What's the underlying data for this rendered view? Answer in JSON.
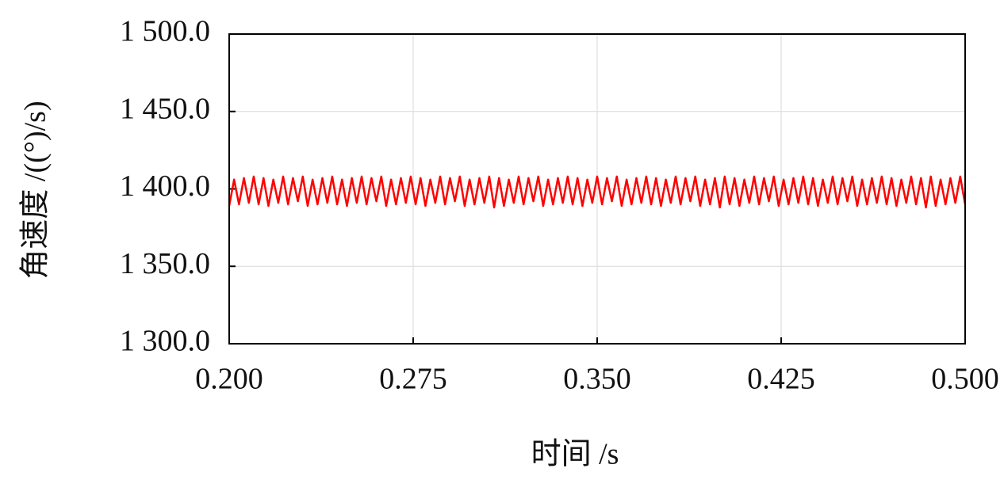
{
  "chart_data": {
    "type": "line",
    "y_label": "角速度 /((°)/s)",
    "x_label": "时间 /s",
    "xlim": [
      0.2,
      0.5
    ],
    "ylim": [
      1300,
      1500
    ],
    "xticks": [
      {
        "value": 0.2,
        "label": "0.200"
      },
      {
        "value": 0.275,
        "label": "0.275"
      },
      {
        "value": 0.35,
        "label": "0.350"
      },
      {
        "value": 0.425,
        "label": "0.425"
      },
      {
        "value": 0.5,
        "label": "0.500"
      }
    ],
    "yticks": [
      {
        "value": 1300,
        "label": "1 300.0"
      },
      {
        "value": 1350,
        "label": "1 350.0"
      },
      {
        "value": 1400,
        "label": "1 400.0"
      },
      {
        "value": 1450,
        "label": "1 450.0"
      },
      {
        "value": 1500,
        "label": "1 500.0"
      }
    ],
    "grid": true,
    "x": [
      0.2,
      0.202,
      0.204,
      0.206,
      0.208,
      0.21,
      0.212,
      0.214,
      0.216,
      0.218,
      0.22,
      0.222,
      0.224,
      0.226,
      0.228,
      0.23,
      0.232,
      0.234,
      0.236,
      0.238,
      0.24,
      0.242,
      0.244,
      0.246,
      0.248,
      0.25,
      0.252,
      0.254,
      0.256,
      0.258,
      0.26,
      0.262,
      0.264,
      0.266,
      0.268,
      0.27,
      0.272,
      0.274,
      0.276,
      0.278,
      0.28,
      0.282,
      0.284,
      0.286,
      0.288,
      0.29,
      0.292,
      0.294,
      0.296,
      0.298,
      0.3,
      0.302,
      0.304,
      0.306,
      0.308,
      0.31,
      0.312,
      0.314,
      0.316,
      0.318,
      0.32,
      0.322,
      0.324,
      0.326,
      0.328,
      0.33,
      0.332,
      0.334,
      0.336,
      0.338,
      0.34,
      0.342,
      0.344,
      0.346,
      0.348,
      0.35,
      0.352,
      0.354,
      0.356,
      0.358,
      0.36,
      0.362,
      0.364,
      0.366,
      0.368,
      0.37,
      0.372,
      0.374,
      0.376,
      0.378,
      0.38,
      0.382,
      0.384,
      0.386,
      0.388,
      0.39,
      0.392,
      0.394,
      0.396,
      0.398,
      0.4,
      0.402,
      0.404,
      0.406,
      0.408,
      0.41,
      0.412,
      0.414,
      0.416,
      0.418,
      0.42,
      0.422,
      0.424,
      0.426,
      0.428,
      0.43,
      0.432,
      0.434,
      0.436,
      0.438,
      0.44,
      0.442,
      0.444,
      0.446,
      0.448,
      0.45,
      0.452,
      0.454,
      0.456,
      0.458,
      0.46,
      0.462,
      0.464,
      0.466,
      0.468,
      0.47,
      0.472,
      0.474,
      0.476,
      0.478,
      0.48,
      0.482,
      0.484,
      0.486,
      0.488,
      0.49,
      0.492,
      0.494,
      0.496,
      0.498,
      0.5
    ],
    "series": [
      {
        "name": "角速度",
        "color": "#ff0000",
        "values": [
          1389,
          1406,
          1390,
          1407,
          1391,
          1408,
          1390,
          1407,
          1389,
          1406,
          1391,
          1408,
          1390,
          1407,
          1392,
          1408,
          1389,
          1406,
          1390,
          1407,
          1391,
          1408,
          1390,
          1406,
          1389,
          1407,
          1391,
          1408,
          1390,
          1407,
          1392,
          1408,
          1389,
          1406,
          1390,
          1407,
          1391,
          1408,
          1390,
          1407,
          1389,
          1406,
          1391,
          1408,
          1390,
          1407,
          1392,
          1408,
          1389,
          1406,
          1390,
          1407,
          1391,
          1408,
          1388,
          1407,
          1389,
          1406,
          1391,
          1408,
          1390,
          1407,
          1392,
          1408,
          1389,
          1406,
          1390,
          1407,
          1391,
          1408,
          1390,
          1407,
          1389,
          1406,
          1391,
          1408,
          1390,
          1407,
          1392,
          1408,
          1389,
          1406,
          1390,
          1407,
          1391,
          1408,
          1390,
          1407,
          1389,
          1406,
          1391,
          1408,
          1390,
          1407,
          1392,
          1408,
          1389,
          1406,
          1390,
          1407,
          1388,
          1408,
          1390,
          1407,
          1389,
          1406,
          1391,
          1408,
          1390,
          1407,
          1392,
          1408,
          1389,
          1406,
          1390,
          1407,
          1391,
          1408,
          1390,
          1407,
          1389,
          1406,
          1391,
          1408,
          1390,
          1407,
          1392,
          1408,
          1389,
          1406,
          1390,
          1407,
          1391,
          1408,
          1390,
          1407,
          1389,
          1406,
          1391,
          1408,
          1390,
          1407,
          1388,
          1408,
          1389,
          1406,
          1390,
          1407,
          1391,
          1408,
          1390
        ]
      }
    ]
  }
}
